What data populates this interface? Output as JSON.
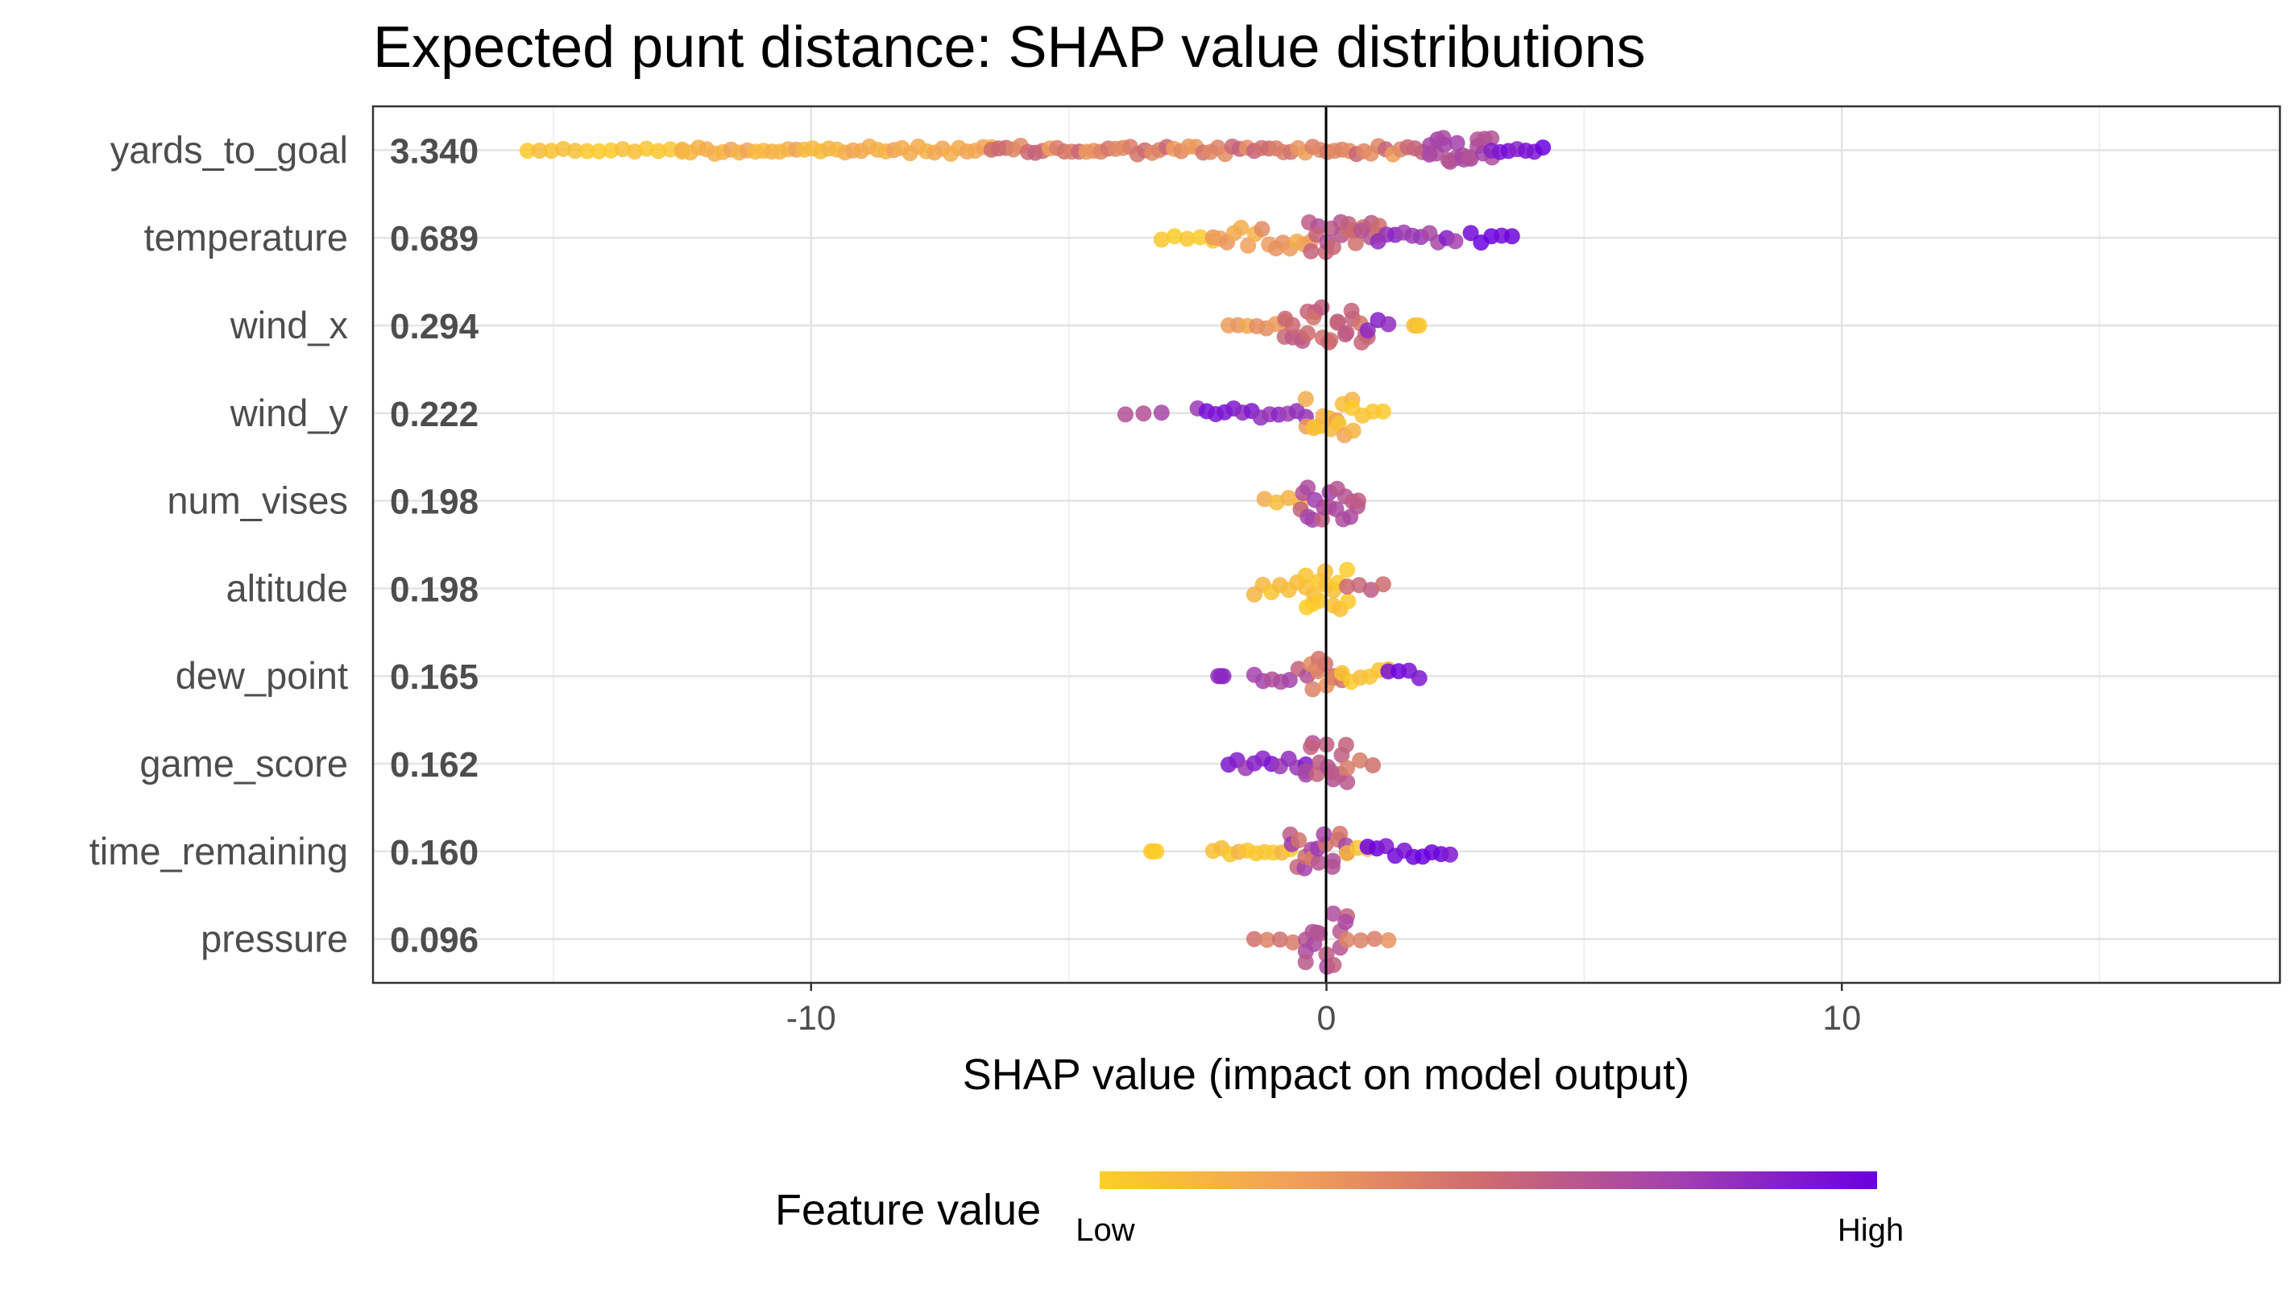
{
  "title": "Expected punt distance: SHAP value distributions",
  "chart_data": {
    "type": "scatter",
    "subtype": "beeswarm",
    "title": "Expected punt distance: SHAP value distributions",
    "xlabel": "SHAP value (impact on model output)",
    "ylabel": "",
    "xlim": [
      -18.5,
      18.5
    ],
    "x_ticks": [
      -10,
      0,
      10
    ],
    "x_tick_labels": [
      "-10",
      "0",
      "10"
    ],
    "grid": true,
    "zero_line": true,
    "color_scale": {
      "title": "Feature value",
      "low_label": "Low",
      "high_label": "High",
      "low_color": "#fcce25",
      "mid_color": "#cc6a70",
      "high_color": "#6a00e0",
      "legend_position": "bottom"
    },
    "features": [
      {
        "name": "yards_to_goal",
        "mean_abs_shap": "3.340",
        "ranges": [
          {
            "min": -15.5,
            "max": -12.5,
            "color_low": 0.0,
            "color_high": 0.1,
            "density": 0.6,
            "spread": 0.05
          },
          {
            "min": -12.5,
            "max": -6.5,
            "color_low": 0.1,
            "color_high": 0.25,
            "density": 0.9,
            "spread": 0.1
          },
          {
            "min": -6.5,
            "max": 2.0,
            "color_low": 0.25,
            "color_high": 0.55,
            "density": 1.0,
            "spread": 0.12
          },
          {
            "min": 2.0,
            "max": 3.2,
            "color_low": 0.6,
            "color_high": 0.75,
            "density": 1.0,
            "spread": 0.35
          },
          {
            "min": 3.2,
            "max": 4.2,
            "color_low": 0.85,
            "color_high": 1.0,
            "density": 0.8,
            "spread": 0.08
          }
        ]
      },
      {
        "name": "temperature",
        "mean_abs_shap": "0.689",
        "ranges": [
          {
            "min": -3.2,
            "max": -2.2,
            "color_low": 0.0,
            "color_high": 0.05,
            "density": 0.5,
            "spread": 0.08
          },
          {
            "min": -2.2,
            "max": -0.3,
            "color_low": 0.15,
            "color_high": 0.35,
            "density": 1.0,
            "spread": 0.3
          },
          {
            "min": -0.3,
            "max": 1.0,
            "color_low": 0.45,
            "color_high": 0.65,
            "density": 1.0,
            "spread": 0.45
          },
          {
            "min": 1.0,
            "max": 2.5,
            "color_low": 0.7,
            "color_high": 0.9,
            "density": 0.8,
            "spread": 0.15
          },
          {
            "min": 2.8,
            "max": 3.6,
            "color_low": 0.95,
            "color_high": 1.0,
            "density": 0.7,
            "spread": 0.15
          }
        ]
      },
      {
        "name": "wind_x",
        "mean_abs_shap": "0.294",
        "ranges": [
          {
            "min": -1.9,
            "max": -0.8,
            "color_low": 0.2,
            "color_high": 0.35,
            "density": 0.8,
            "spread": 0.15
          },
          {
            "min": -0.8,
            "max": 0.8,
            "color_low": 0.45,
            "color_high": 0.6,
            "density": 1.0,
            "spread": 0.5
          },
          {
            "min": 0.8,
            "max": 1.2,
            "color_low": 0.8,
            "color_high": 1.0,
            "density": 0.6,
            "spread": 0.15
          },
          {
            "min": 1.7,
            "max": 1.8,
            "color_low": 0.05,
            "color_high": 0.1,
            "density": 0.3,
            "spread": 0.0
          }
        ]
      },
      {
        "name": "wind_y",
        "mean_abs_shap": "0.222",
        "ranges": [
          {
            "min": -3.9,
            "max": -3.2,
            "color_low": 0.65,
            "color_high": 0.85,
            "density": 0.4,
            "spread": 0.05
          },
          {
            "min": -2.5,
            "max": -0.4,
            "color_low": 0.75,
            "color_high": 0.95,
            "density": 0.8,
            "spread": 0.15
          },
          {
            "min": -0.4,
            "max": 0.5,
            "color_low": 0.05,
            "color_high": 0.3,
            "density": 1.0,
            "spread": 0.6
          },
          {
            "min": 0.5,
            "max": 1.1,
            "color_low": 0.0,
            "color_high": 0.1,
            "density": 0.8,
            "spread": 0.25
          }
        ]
      },
      {
        "name": "num_vises",
        "mean_abs_shap": "0.198",
        "ranges": [
          {
            "min": -1.2,
            "max": -0.5,
            "color_low": 0.05,
            "color_high": 0.2,
            "density": 0.6,
            "spread": 0.1
          },
          {
            "min": -0.5,
            "max": 0.6,
            "color_low": 0.55,
            "color_high": 0.75,
            "density": 1.0,
            "spread": 0.55
          }
        ]
      },
      {
        "name": "altitude",
        "mean_abs_shap": "0.198",
        "ranges": [
          {
            "min": -1.4,
            "max": -0.4,
            "color_low": 0.05,
            "color_high": 0.15,
            "density": 0.8,
            "spread": 0.2
          },
          {
            "min": -0.4,
            "max": 0.4,
            "color_low": 0.0,
            "color_high": 0.1,
            "density": 1.0,
            "spread": 0.6
          },
          {
            "min": 0.4,
            "max": 1.1,
            "color_low": 0.3,
            "color_high": 0.6,
            "density": 0.7,
            "spread": 0.2
          }
        ]
      },
      {
        "name": "dew_point",
        "mean_abs_shap": "0.165",
        "ranges": [
          {
            "min": -2.1,
            "max": -2.0,
            "color_low": 0.8,
            "color_high": 0.85,
            "density": 0.3,
            "spread": 0.0
          },
          {
            "min": -1.4,
            "max": -0.2,
            "color_low": 0.55,
            "color_high": 0.75,
            "density": 0.8,
            "spread": 0.2
          },
          {
            "min": -0.3,
            "max": 0.3,
            "color_low": 0.3,
            "color_high": 0.6,
            "density": 1.0,
            "spread": 0.6
          },
          {
            "min": 0.3,
            "max": 1.2,
            "color_low": 0.0,
            "color_high": 0.1,
            "density": 0.8,
            "spread": 0.2
          },
          {
            "min": 1.2,
            "max": 1.8,
            "color_low": 0.9,
            "color_high": 1.0,
            "density": 0.6,
            "spread": 0.15
          }
        ]
      },
      {
        "name": "game_score",
        "mean_abs_shap": "0.162",
        "ranges": [
          {
            "min": -1.9,
            "max": -0.4,
            "color_low": 0.75,
            "color_high": 0.95,
            "density": 0.8,
            "spread": 0.15
          },
          {
            "min": -0.4,
            "max": 0.4,
            "color_low": 0.55,
            "color_high": 0.75,
            "density": 1.0,
            "spread": 0.6
          },
          {
            "min": 0.4,
            "max": 0.9,
            "color_low": 0.35,
            "color_high": 0.5,
            "density": 0.6,
            "spread": 0.15
          }
        ]
      },
      {
        "name": "time_remaining",
        "mean_abs_shap": "0.160",
        "ranges": [
          {
            "min": -3.4,
            "max": -3.3,
            "color_low": 0.0,
            "color_high": 0.05,
            "density": 0.3,
            "spread": 0.0
          },
          {
            "min": -2.2,
            "max": -0.7,
            "color_low": 0.0,
            "color_high": 0.15,
            "density": 0.8,
            "spread": 0.1
          },
          {
            "min": -0.7,
            "max": 0.4,
            "color_low": 0.4,
            "color_high": 0.8,
            "density": 1.0,
            "spread": 0.5
          },
          {
            "min": 0.4,
            "max": 0.8,
            "color_low": 0.05,
            "color_high": 0.2,
            "density": 0.7,
            "spread": 0.15
          },
          {
            "min": 0.8,
            "max": 2.4,
            "color_low": 0.9,
            "color_high": 1.0,
            "density": 0.8,
            "spread": 0.15
          }
        ]
      },
      {
        "name": "pressure",
        "mean_abs_shap": "0.096",
        "ranges": [
          {
            "min": -1.4,
            "max": -0.4,
            "color_low": 0.35,
            "color_high": 0.8,
            "density": 0.6,
            "spread": 0.1
          },
          {
            "min": -0.4,
            "max": 0.4,
            "color_low": 0.55,
            "color_high": 0.7,
            "density": 1.0,
            "spread": 0.8
          },
          {
            "min": 0.4,
            "max": 1.2,
            "color_low": 0.3,
            "color_high": 0.45,
            "density": 0.6,
            "spread": 0.1
          }
        ]
      }
    ]
  }
}
